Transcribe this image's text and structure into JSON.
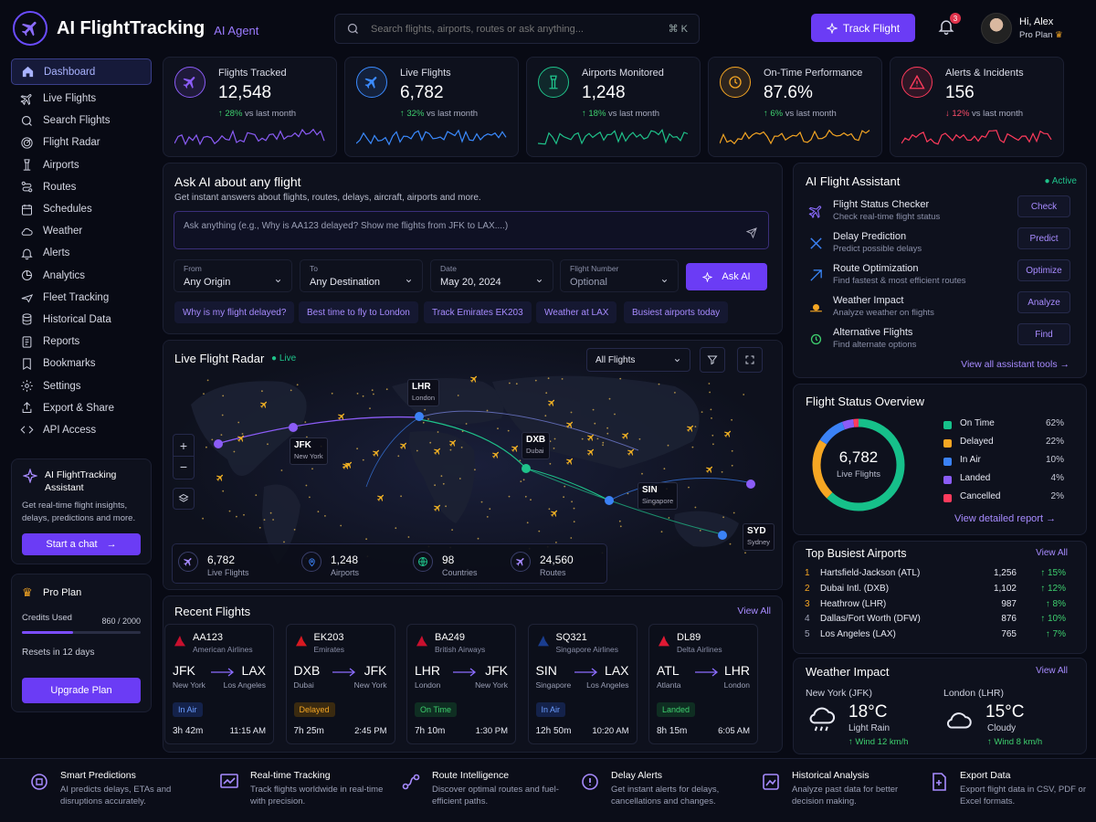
{
  "header": {
    "brand_title": "AI FlightTracking",
    "brand_sub": "AI Agent",
    "search_placeholder": "Search flights, airports, routes or ask anything...",
    "search_shortcut": "⌘ K",
    "track_button": "Track Flight",
    "notification_count": "3",
    "user_greeting": "Hi, Alex",
    "user_plan": "Pro Plan"
  },
  "sidebar": {
    "items": [
      "Dashboard",
      "Live Flights",
      "Search Flights",
      "Flight Radar",
      "Airports",
      "Routes",
      "Schedules",
      "Weather",
      "Alerts",
      "Analytics",
      "Fleet Tracking",
      "Historical Data",
      "Reports",
      "Bookmarks",
      "Settings",
      "Export & Share",
      "API Access"
    ],
    "assistant": {
      "title": "AI FlightTracking Assistant",
      "desc": "Get real-time flight insights, delays, predictions and more.",
      "button": "Start a chat"
    },
    "plan": {
      "title": "Pro Plan",
      "credits_label": "Credits Used",
      "credits_value": "860 / 2000",
      "credits_fraction": 0.43,
      "reset": "Resets in 12 days",
      "button": "Upgrade Plan"
    }
  },
  "stats": [
    {
      "label": "Flights Tracked",
      "value": "12,548",
      "change": "28%",
      "suffix": "vs last month",
      "direction": "up",
      "color": "#8b5cf6"
    },
    {
      "label": "Live Flights",
      "value": "6,782",
      "change": "32%",
      "suffix": "vs last month",
      "direction": "up",
      "color": "#3b8bff"
    },
    {
      "label": "Airports Monitored",
      "value": "1,248",
      "change": "18%",
      "suffix": "vs last month",
      "direction": "up",
      "color": "#1fc28a"
    },
    {
      "label": "On-Time Performance",
      "value": "87.6%",
      "change": "6%",
      "suffix": "vs last month",
      "direction": "up",
      "color": "#f5a623"
    },
    {
      "label": "Alerts & Incidents",
      "value": "156",
      "change": "12%",
      "suffix": "vs last month",
      "direction": "down",
      "color": "#ff3b5c"
    }
  ],
  "ask": {
    "title": "Ask AI about any flight",
    "subtitle": "Get instant answers about flights, routes, delays, aircraft, airports and more.",
    "placeholder": "Ask anything (e.g., Why is AA123 delayed? Show me flights from JFK to LAX....)",
    "from_label": "From",
    "from_value": "Any Origin",
    "to_label": "To",
    "to_value": "Any Destination",
    "date_label": "Date",
    "date_value": "May 20, 2024",
    "flight_label": "Flight Number",
    "flight_value": "Optional",
    "button": "Ask AI",
    "suggestions": [
      "Why is my flight delayed?",
      "Best time to fly to London",
      "Track Emirates EK203",
      "Weather at LAX",
      "Busiest airports today"
    ]
  },
  "radar": {
    "title": "Live Flight Radar",
    "live": "Live",
    "filter": "All Flights",
    "cities": [
      {
        "code": "LHR",
        "name": "London"
      },
      {
        "code": "JFK",
        "name": "New York"
      },
      {
        "code": "DXB",
        "name": "Dubai"
      },
      {
        "code": "SIN",
        "name": "Singapore"
      },
      {
        "code": "SYD",
        "name": "Sydney"
      }
    ],
    "stats": [
      {
        "value": "6,782",
        "label": "Live Flights"
      },
      {
        "value": "1,248",
        "label": "Airports"
      },
      {
        "value": "98",
        "label": "Countries"
      },
      {
        "value": "24,560",
        "label": "Routes"
      }
    ]
  },
  "assistant_panel": {
    "title": "AI Flight Assistant",
    "status": "Active",
    "items": [
      {
        "title": "Flight Status Checker",
        "sub": "Check real-time flight status",
        "action": "Check",
        "icon": "plane-check-icon"
      },
      {
        "title": "Delay Prediction",
        "sub": "Predict possible delays",
        "action": "Predict",
        "icon": "delay-icon"
      },
      {
        "title": "Route Optimization",
        "sub": "Find fastest & most efficient routes",
        "action": "Optimize",
        "icon": "route-icon"
      },
      {
        "title": "Weather Impact",
        "sub": "Analyze weather on flights",
        "action": "Analyze",
        "icon": "weather-icon"
      },
      {
        "title": "Alternative Flights",
        "sub": "Find alternate options",
        "action": "Find",
        "icon": "refresh-icon"
      }
    ],
    "link": "View all assistant tools"
  },
  "status_overview": {
    "title": "Flight Status Overview",
    "center_value": "6,782",
    "center_label": "Live Flights",
    "link": "View detailed report",
    "chart_data": {
      "type": "pie",
      "categories": [
        "On Time",
        "Delayed",
        "In Air",
        "Landed",
        "Cancelled"
      ],
      "values": [
        62,
        22,
        10,
        4,
        2
      ],
      "colors": [
        "#16c08a",
        "#f5a623",
        "#3b82f6",
        "#8b5cf6",
        "#ff3b5c"
      ]
    }
  },
  "airports": {
    "title": "Top Busiest Airports",
    "link": "View All",
    "rows": [
      {
        "rank": "1",
        "name": "Hartsfield-Jackson (ATL)",
        "count": "1,256",
        "pct": "15%"
      },
      {
        "rank": "2",
        "name": "Dubai Intl. (DXB)",
        "count": "1,102",
        "pct": "12%"
      },
      {
        "rank": "3",
        "name": "Heathrow (LHR)",
        "count": "987",
        "pct": "8%"
      },
      {
        "rank": "4",
        "name": "Dallas/Fort Worth (DFW)",
        "count": "876",
        "pct": "10%"
      },
      {
        "rank": "5",
        "name": "Los Angeles (LAX)",
        "count": "765",
        "pct": "7%"
      }
    ]
  },
  "weather": {
    "title": "Weather Impact",
    "link": "View All",
    "cities": [
      {
        "city": "New York (JFK)",
        "temp": "18°C",
        "cond": "Light Rain",
        "wind": "Wind 12 km/h"
      },
      {
        "city": "London (LHR)",
        "temp": "15°C",
        "cond": "Cloudy",
        "wind": "Wind 8 km/h"
      }
    ]
  },
  "recent": {
    "title": "Recent Flights",
    "link": "View All",
    "flights": [
      {
        "code": "AA123",
        "airline": "American Airlines",
        "from": "JFK",
        "from_city": "New York",
        "to": "LAX",
        "to_city": "Los Angeles",
        "status": "In Air",
        "duration": "3h 42m",
        "time": "11:15 AM"
      },
      {
        "code": "EK203",
        "airline": "Emirates",
        "from": "DXB",
        "from_city": "Dubai",
        "to": "JFK",
        "to_city": "New York",
        "status": "Delayed",
        "duration": "7h 25m",
        "time": "2:45 PM"
      },
      {
        "code": "BA249",
        "airline": "British Airways",
        "from": "LHR",
        "from_city": "London",
        "to": "JFK",
        "to_city": "New York",
        "status": "On Time",
        "duration": "7h 10m",
        "time": "1:30 PM"
      },
      {
        "code": "SQ321",
        "airline": "Singapore Airlines",
        "from": "SIN",
        "from_city": "Singapore",
        "to": "LAX",
        "to_city": "Los Angeles",
        "status": "In Air",
        "duration": "12h 50m",
        "time": "10:20 AM"
      },
      {
        "code": "DL89",
        "airline": "Delta Airlines",
        "from": "ATL",
        "from_city": "Atlanta",
        "to": "LHR",
        "to_city": "London",
        "status": "Landed",
        "duration": "8h 15m",
        "time": "6:05 AM"
      }
    ]
  },
  "features": [
    {
      "title": "Smart Predictions",
      "desc": "AI predicts delays, ETAs and disruptions accurately."
    },
    {
      "title": "Real-time Tracking",
      "desc": "Track flights worldwide in real-time with precision."
    },
    {
      "title": "Route Intelligence",
      "desc": "Discover optimal routes and fuel-efficient paths."
    },
    {
      "title": "Delay Alerts",
      "desc": "Get instant alerts for delays, cancellations and changes."
    },
    {
      "title": "Historical Analysis",
      "desc": "Analyze past data for better decision making."
    },
    {
      "title": "Export Data",
      "desc": "Export flight data in CSV, PDF or Excel formats."
    }
  ]
}
